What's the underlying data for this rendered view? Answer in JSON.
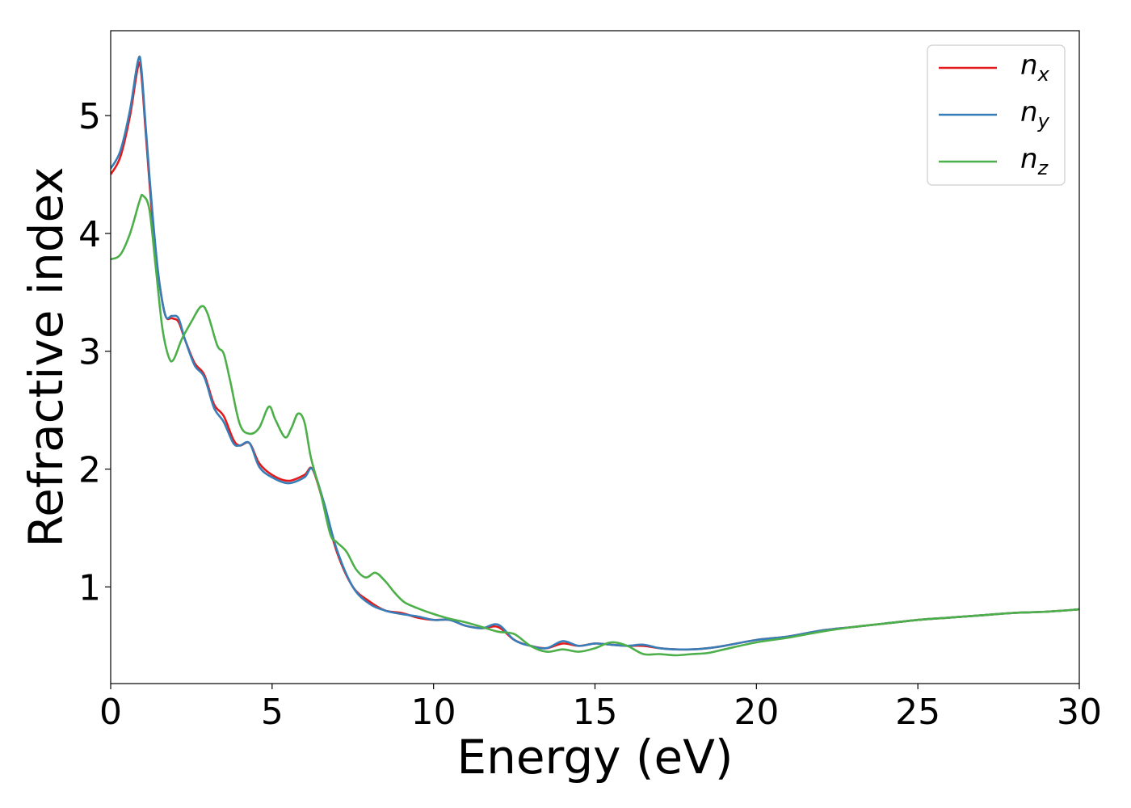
{
  "chart_data": {
    "type": "line",
    "xlabel": "Energy (eV)",
    "ylabel": "Refractive index",
    "xlim": [
      0,
      30
    ],
    "ylim": [
      0.18,
      5.72
    ],
    "xticks": [
      0,
      5,
      10,
      15,
      20,
      25,
      30
    ],
    "yticks": [
      1,
      2,
      3,
      4,
      5
    ],
    "grid": false,
    "legend_position": "top-right",
    "series": [
      {
        "name": "n_x",
        "label_base": "n",
        "label_sub": "x",
        "color": "#e41a1c",
        "x": [
          0,
          0.3,
          0.6,
          0.85,
          0.95,
          1.1,
          1.3,
          1.5,
          1.7,
          1.9,
          2.1,
          2.3,
          2.6,
          2.9,
          3.2,
          3.5,
          3.8,
          4.0,
          4.3,
          4.6,
          5.0,
          5.5,
          6.0,
          6.25,
          6.6,
          7.0,
          7.5,
          8.0,
          8.5,
          9.0,
          9.5,
          10.0,
          10.5,
          11.0,
          11.5,
          12.0,
          12.5,
          13.0,
          13.5,
          14.0,
          14.5,
          15.0,
          15.5,
          16.0,
          16.5,
          17.0,
          17.5,
          18.0,
          18.5,
          19.0,
          20.0,
          21.0,
          22.0,
          23.0,
          24.0,
          25.0,
          26.0,
          27.0,
          28.0,
          29.0,
          30.0
        ],
        "y": [
          4.5,
          4.65,
          5.0,
          5.42,
          5.35,
          4.8,
          4.1,
          3.6,
          3.3,
          3.28,
          3.25,
          3.1,
          2.9,
          2.8,
          2.55,
          2.45,
          2.25,
          2.2,
          2.22,
          2.05,
          1.95,
          1.9,
          1.95,
          2.0,
          1.7,
          1.3,
          1.0,
          0.88,
          0.8,
          0.78,
          0.74,
          0.72,
          0.72,
          0.67,
          0.65,
          0.66,
          0.55,
          0.5,
          0.48,
          0.52,
          0.5,
          0.52,
          0.51,
          0.5,
          0.5,
          0.48,
          0.47,
          0.47,
          0.48,
          0.5,
          0.55,
          0.58,
          0.63,
          0.66,
          0.69,
          0.72,
          0.74,
          0.76,
          0.78,
          0.79,
          0.81
        ]
      },
      {
        "name": "n_y",
        "label_base": "n",
        "label_sub": "y",
        "color": "#377eb8",
        "x": [
          0,
          0.3,
          0.6,
          0.85,
          0.95,
          1.1,
          1.3,
          1.5,
          1.7,
          1.9,
          2.1,
          2.3,
          2.6,
          2.9,
          3.2,
          3.5,
          3.8,
          4.0,
          4.3,
          4.6,
          5.0,
          5.5,
          6.0,
          6.25,
          6.6,
          7.0,
          7.5,
          8.0,
          8.5,
          9.0,
          9.5,
          10.0,
          10.5,
          11.0,
          11.5,
          12.0,
          12.5,
          13.0,
          13.5,
          14.0,
          14.5,
          15.0,
          15.5,
          16.0,
          16.5,
          17.0,
          17.5,
          18.0,
          18.5,
          19.0,
          20.0,
          21.0,
          22.0,
          23.0,
          24.0,
          25.0,
          26.0,
          27.0,
          28.0,
          29.0,
          30.0
        ],
        "y": [
          4.55,
          4.7,
          5.05,
          5.47,
          5.4,
          4.85,
          4.15,
          3.6,
          3.3,
          3.3,
          3.28,
          3.1,
          2.88,
          2.78,
          2.52,
          2.4,
          2.22,
          2.2,
          2.22,
          2.02,
          1.93,
          1.88,
          1.93,
          2.0,
          1.72,
          1.32,
          1.0,
          0.86,
          0.8,
          0.77,
          0.75,
          0.72,
          0.72,
          0.67,
          0.65,
          0.68,
          0.55,
          0.5,
          0.48,
          0.54,
          0.5,
          0.52,
          0.51,
          0.5,
          0.51,
          0.48,
          0.47,
          0.47,
          0.48,
          0.5,
          0.55,
          0.58,
          0.63,
          0.66,
          0.69,
          0.72,
          0.74,
          0.76,
          0.78,
          0.79,
          0.81
        ]
      },
      {
        "name": "n_z",
        "label_base": "n",
        "label_sub": "z",
        "color": "#4daf4a",
        "x": [
          0,
          0.3,
          0.6,
          0.9,
          1.0,
          1.2,
          1.4,
          1.6,
          1.8,
          1.95,
          2.2,
          2.5,
          2.8,
          3.0,
          3.3,
          3.5,
          3.7,
          4.0,
          4.3,
          4.6,
          4.9,
          5.1,
          5.4,
          5.6,
          5.8,
          6.0,
          6.2,
          6.5,
          6.8,
          7.0,
          7.3,
          7.6,
          7.9,
          8.2,
          8.5,
          8.8,
          9.1,
          9.5,
          10.0,
          10.5,
          11.0,
          11.5,
          12.0,
          12.5,
          13.0,
          13.5,
          14.0,
          14.5,
          15.0,
          15.5,
          16.0,
          16.5,
          17.0,
          17.5,
          18.0,
          18.5,
          19.0,
          20.0,
          21.0,
          22.0,
          23.0,
          24.0,
          25.0,
          26.0,
          27.0,
          28.0,
          29.0,
          30.0
        ],
        "y": [
          3.78,
          3.82,
          4.0,
          4.28,
          4.32,
          4.2,
          3.7,
          3.2,
          2.95,
          2.93,
          3.1,
          3.25,
          3.38,
          3.32,
          3.05,
          2.98,
          2.75,
          2.38,
          2.3,
          2.35,
          2.53,
          2.42,
          2.27,
          2.35,
          2.47,
          2.4,
          2.1,
          1.8,
          1.45,
          1.38,
          1.3,
          1.15,
          1.08,
          1.12,
          1.05,
          0.95,
          0.87,
          0.82,
          0.77,
          0.73,
          0.7,
          0.66,
          0.62,
          0.6,
          0.5,
          0.45,
          0.47,
          0.45,
          0.48,
          0.53,
          0.5,
          0.43,
          0.43,
          0.42,
          0.43,
          0.44,
          0.47,
          0.53,
          0.57,
          0.62,
          0.66,
          0.69,
          0.72,
          0.74,
          0.76,
          0.78,
          0.79,
          0.81
        ]
      }
    ]
  }
}
